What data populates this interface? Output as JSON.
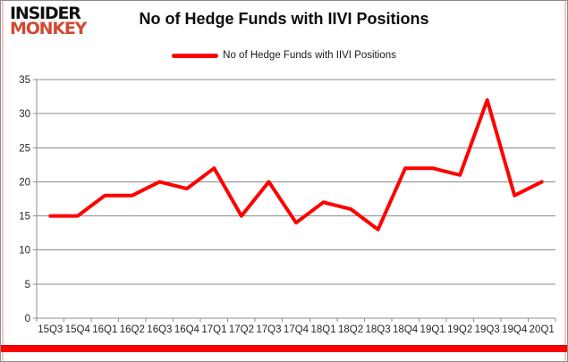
{
  "brand": {
    "line1": "INSIDER",
    "line2": "MONKEY",
    "color1": "#111111",
    "color2": "#cf4a35"
  },
  "header": {
    "title": "No of Hedge Funds with IIVI Positions"
  },
  "legend": {
    "label": "No of Hedge Funds with IIVI Positions",
    "line_color": "#ff0000"
  },
  "chart_data": {
    "type": "line",
    "title": "No of Hedge Funds with IIVI Positions",
    "categories": [
      "15Q3",
      "15Q4",
      "16Q1",
      "16Q2",
      "16Q3",
      "16Q4",
      "17Q1",
      "17Q2",
      "17Q3",
      "17Q4",
      "18Q1",
      "18Q2",
      "18Q3",
      "18Q4",
      "19Q1",
      "19Q2",
      "19Q3",
      "19Q4",
      "20Q1"
    ],
    "series": [
      {
        "name": "No of Hedge Funds with IIVI Positions",
        "color": "#ff0000",
        "values": [
          15,
          15,
          18,
          18,
          20,
          19,
          22,
          15,
          20,
          14,
          17,
          16,
          13,
          22,
          22,
          21,
          32,
          18,
          20
        ]
      }
    ],
    "xlabel": "",
    "ylabel": "",
    "ylim": [
      0,
      35
    ],
    "ytick_step": 5,
    "yticks": [
      0,
      5,
      10,
      15,
      20,
      25,
      30,
      35
    ],
    "grid": true,
    "legend_position": "top-center",
    "gridline_color": "#8c8c8c",
    "axis_color": "#8c8c8c",
    "tick_label_color": "#262626",
    "line_width": 4
  },
  "footer": {
    "accent_bar_color": "#ff0000"
  }
}
